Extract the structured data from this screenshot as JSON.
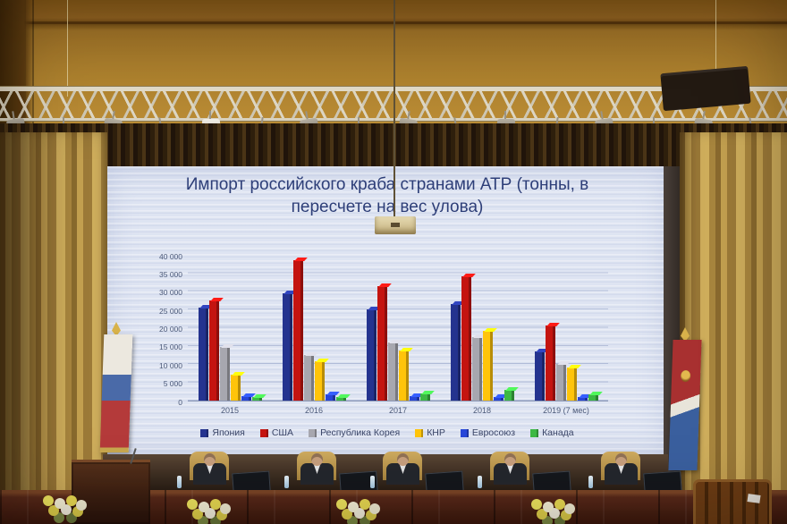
{
  "chart_data": {
    "type": "bar",
    "title": "Импорт российского краба странами АТР (тонны, в пересчете на вес улова)",
    "categories": [
      "2015",
      "2016",
      "2017",
      "2018",
      "2019 (7 мес)"
    ],
    "series": [
      {
        "name": "Япония",
        "color": "#24338f",
        "values": [
          25500,
          29500,
          25000,
          26500,
          13500
        ]
      },
      {
        "name": "США",
        "color": "#c41410",
        "values": [
          27500,
          38500,
          31500,
          34000,
          20500
        ]
      },
      {
        "name": "Республика Корея",
        "color": "#a7a7af",
        "values": [
          14800,
          12500,
          16000,
          17500,
          10000
        ]
      },
      {
        "name": "КНР",
        "color": "#ffc40a",
        "values": [
          7000,
          10800,
          13800,
          19200,
          9000
        ]
      },
      {
        "name": "Евросоюз",
        "color": "#2746d8",
        "values": [
          1200,
          1800,
          1300,
          1100,
          900
        ]
      },
      {
        "name": "Канада",
        "color": "#3cb844",
        "values": [
          1100,
          1100,
          2000,
          3000,
          1600
        ]
      }
    ],
    "ylim": [
      0,
      40000
    ],
    "ytick_step": 5000,
    "yticks": [
      "40 000",
      "35 000",
      "30 000",
      "25 000",
      "20 000",
      "15 000",
      "10 000",
      "5 000",
      "0"
    ],
    "grid": true,
    "legend_position": "bottom",
    "screen_background": "#dee4f2",
    "title_color": "#2d3e78"
  }
}
